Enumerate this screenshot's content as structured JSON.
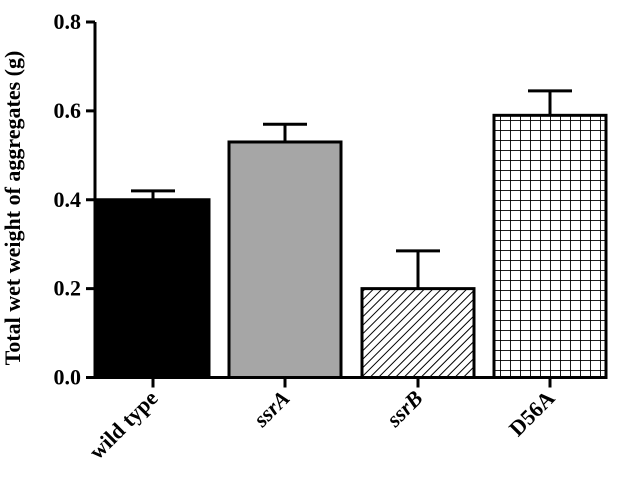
{
  "chart_data": {
    "type": "bar",
    "ylabel": "Total wet weight of aggregates (g)",
    "ylim": [
      0,
      0.8
    ],
    "yticks": [
      "0.0",
      "0.2",
      "0.4",
      "0.6",
      "0.8"
    ],
    "categories": [
      "wild type",
      "ssrA",
      "ssrB",
      "D56A"
    ],
    "italic_categories": [
      false,
      true,
      true,
      false
    ],
    "values": [
      0.4,
      0.53,
      0.2,
      0.59
    ],
    "errors": [
      0.02,
      0.04,
      0.085,
      0.055
    ],
    "fills": [
      "solid-black",
      "solid-gray",
      "diagonal-hatch",
      "grid-hatch"
    ],
    "colors": {
      "black": "#000000",
      "gray": "#a6a6a6",
      "white": "#ffffff"
    }
  }
}
